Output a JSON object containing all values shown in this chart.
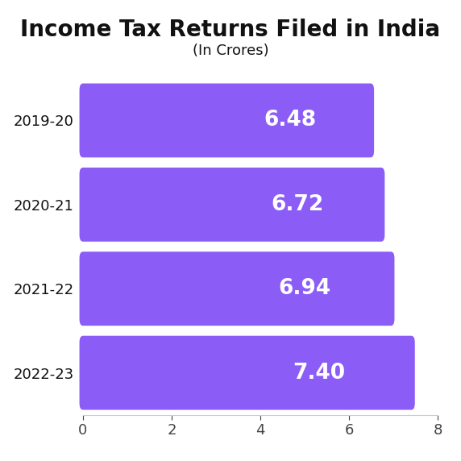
{
  "title": "Income Tax Returns Filed in India",
  "subtitle": "(In Crores)",
  "categories": [
    "2019-20",
    "2020-21",
    "2021-22",
    "2022-23"
  ],
  "values": [
    6.48,
    6.72,
    6.94,
    7.4
  ],
  "bar_color": "#8B5CF6",
  "label_color": "#FFFFFF",
  "bg_color": "#FFFFFF",
  "text_color": "#111111",
  "xlim": [
    0,
    8
  ],
  "xticks": [
    0,
    2,
    4,
    6,
    8
  ],
  "bar_height": 0.72,
  "label_fontsize": 19,
  "ytick_fontsize": 13,
  "xtick_fontsize": 13,
  "title_fontsize": 20,
  "subtitle_fontsize": 13
}
